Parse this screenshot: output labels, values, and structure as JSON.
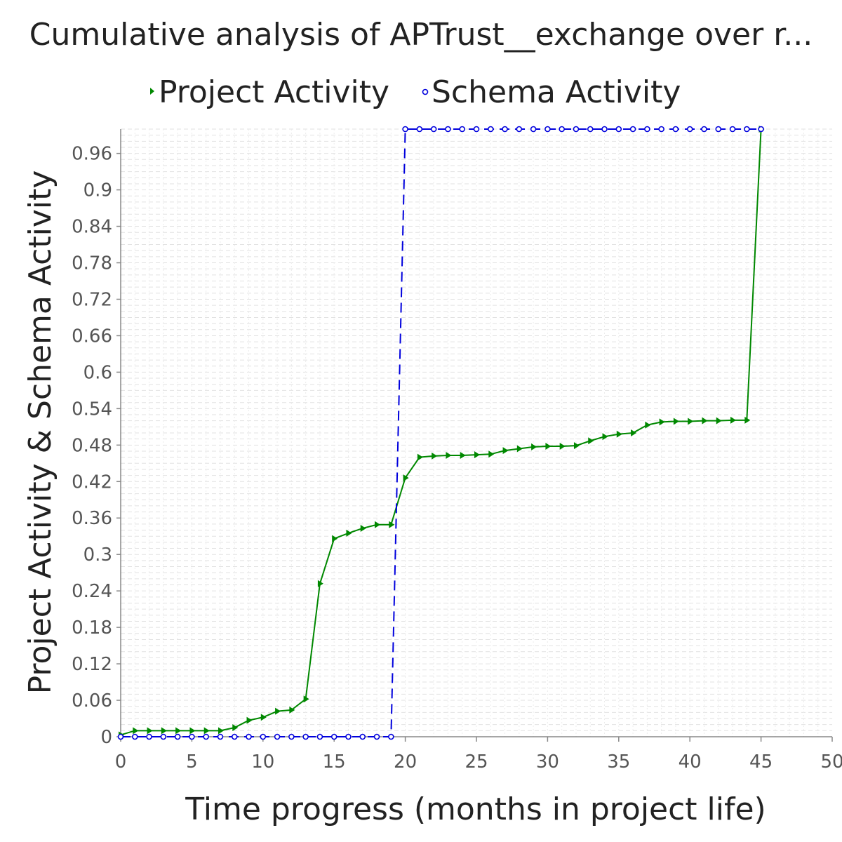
{
  "chart_data": {
    "type": "line",
    "title": "Cumulative analysis of APTrust__exchange over r...",
    "xlabel": "Time progress (months in project life)",
    "ylabel": "Project Activity & Schema Activity",
    "xlim": [
      0,
      50
    ],
    "ylim": [
      0,
      1.0
    ],
    "x_ticks": [
      "0",
      "5",
      "10",
      "15",
      "20",
      "25",
      "30",
      "35",
      "40",
      "45",
      "50"
    ],
    "y_ticks": [
      "0",
      "0.06",
      "0.12",
      "0.18",
      "0.24",
      "0.3",
      "0.36",
      "0.42",
      "0.48",
      "0.54",
      "0.6",
      "0.66",
      "0.72",
      "0.78",
      "0.84",
      "0.9",
      "0.96"
    ],
    "grid": true,
    "legend_position": "top",
    "series": [
      {
        "name": "Project Activity",
        "color": "#008800",
        "marker": "triangle-right",
        "dash": "solid",
        "x": [
          0,
          1,
          2,
          3,
          4,
          5,
          6,
          7,
          8,
          9,
          10,
          11,
          12,
          13,
          14,
          15,
          16,
          17,
          18,
          19,
          20,
          21,
          22,
          23,
          24,
          25,
          26,
          27,
          28,
          29,
          30,
          31,
          32,
          33,
          34,
          35,
          36,
          37,
          38,
          39,
          40,
          41,
          42,
          43,
          44,
          45
        ],
        "y": [
          0.003,
          0.01,
          0.01,
          0.01,
          0.01,
          0.01,
          0.01,
          0.01,
          0.015,
          0.027,
          0.032,
          0.042,
          0.044,
          0.062,
          0.252,
          0.326,
          0.335,
          0.343,
          0.349,
          0.349,
          0.426,
          0.46,
          0.462,
          0.463,
          0.463,
          0.464,
          0.465,
          0.471,
          0.474,
          0.477,
          0.478,
          0.478,
          0.479,
          0.487,
          0.494,
          0.498,
          0.5,
          0.513,
          0.518,
          0.519,
          0.519,
          0.52,
          0.52,
          0.521,
          0.521,
          1.0
        ]
      },
      {
        "name": "Schema Activity",
        "color": "#0000dd",
        "marker": "circle",
        "dash": "dashed",
        "x": [
          0,
          1,
          2,
          3,
          4,
          5,
          6,
          7,
          8,
          9,
          10,
          11,
          12,
          13,
          14,
          15,
          16,
          17,
          18,
          19,
          20,
          21,
          22,
          23,
          24,
          25,
          26,
          27,
          28,
          29,
          30,
          31,
          32,
          33,
          34,
          35,
          36,
          37,
          38,
          39,
          40,
          41,
          42,
          43,
          44,
          45
        ],
        "y": [
          0,
          0,
          0,
          0,
          0,
          0,
          0,
          0,
          0,
          0,
          0,
          0,
          0,
          0,
          0,
          0,
          0,
          0,
          0,
          0,
          1,
          1,
          1,
          1,
          1,
          1,
          1,
          1,
          1,
          1,
          1,
          1,
          1,
          1,
          1,
          1,
          1,
          1,
          1,
          1,
          1,
          1,
          1,
          1,
          1,
          1
        ]
      }
    ]
  }
}
